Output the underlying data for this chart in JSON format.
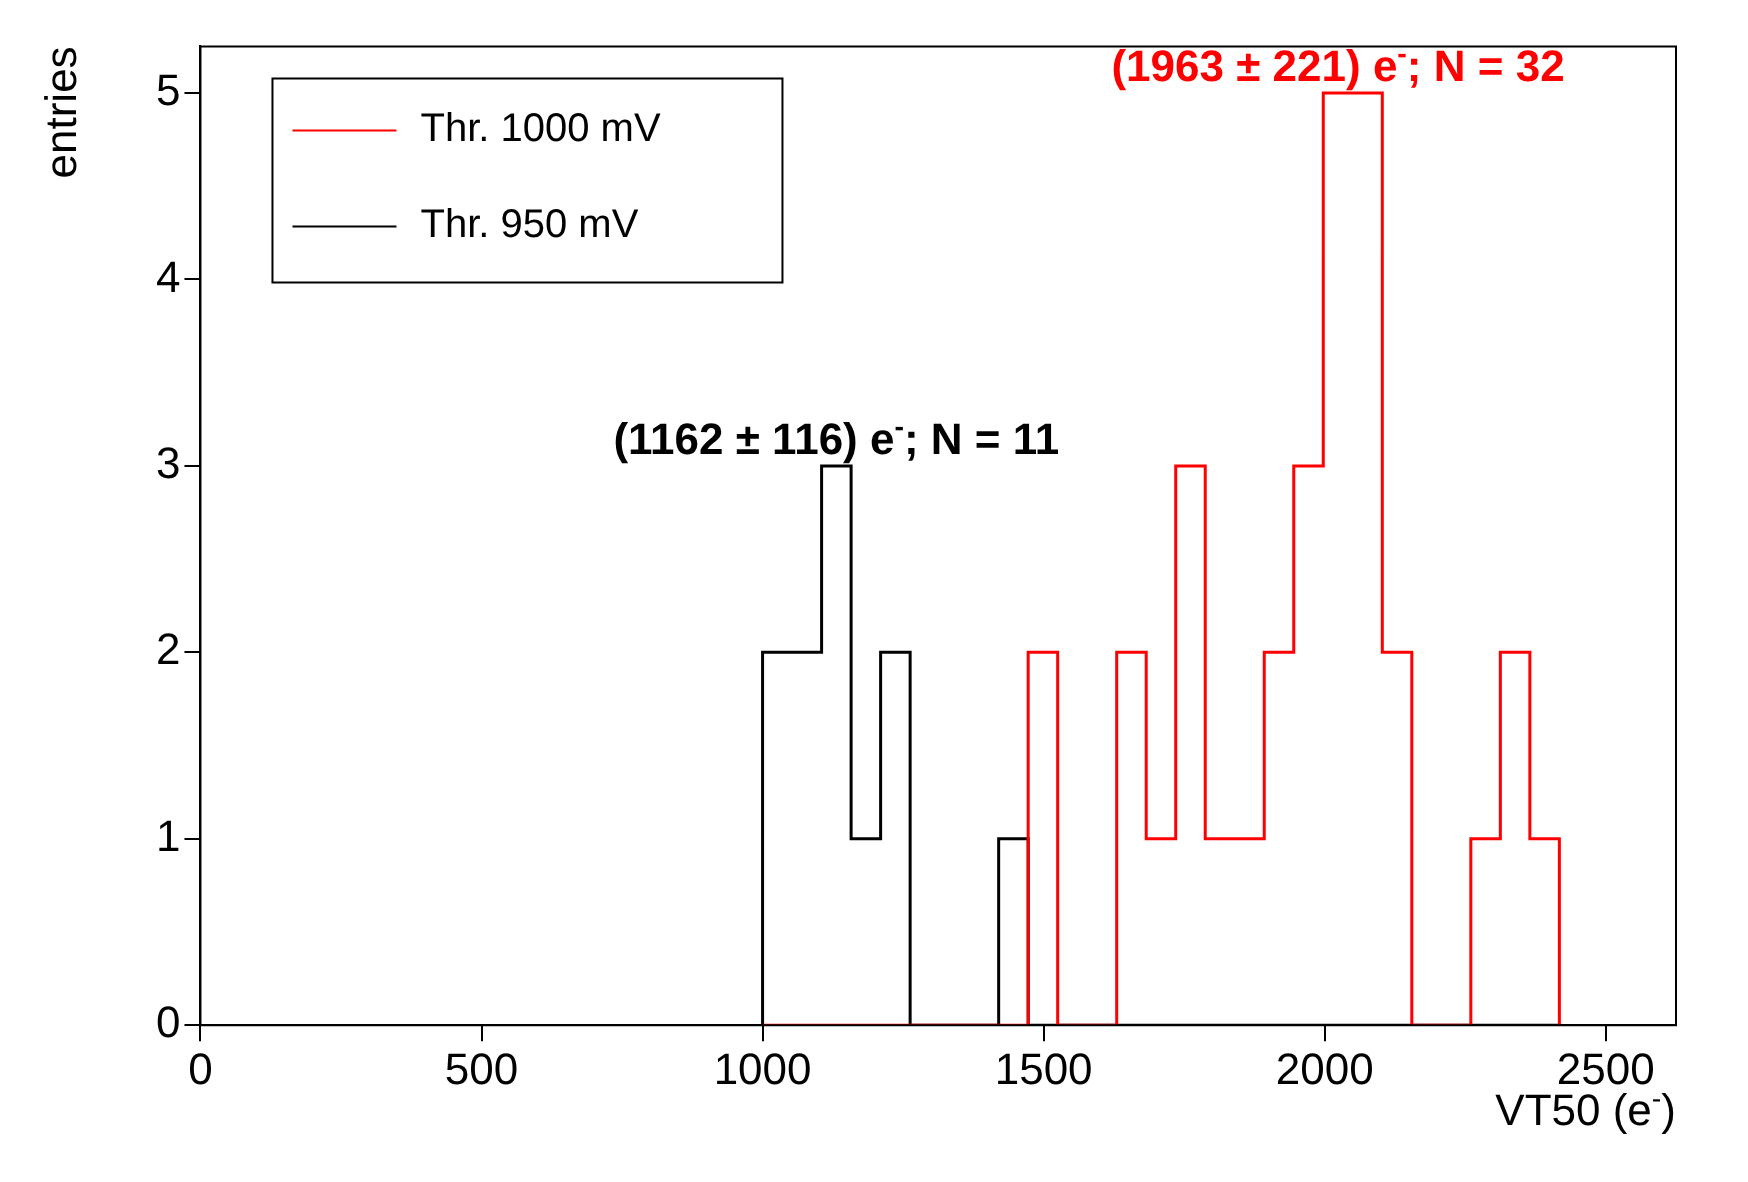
{
  "chart_data": {
    "type": "histogram",
    "xlabel": "VT50 (e$^{-}$)",
    "ylabel": "entries",
    "bins": [
      1000,
      1052.5,
      1105,
      1157.5,
      1210,
      1262.5,
      1315,
      1367.5,
      1420,
      1472.5,
      1525,
      1577.5,
      1630,
      1682.5,
      1735,
      1787.5,
      1840,
      1892.5,
      1945,
      1997.5,
      2050,
      2102.5,
      2155,
      2207.5,
      2260,
      2312.5,
      2365,
      2417.5
    ],
    "series": [
      {
        "name": "Thr. 1000 mV",
        "color": "#ff0000",
        "values": [
          0,
          0,
          0,
          0,
          0,
          0,
          0,
          0,
          0,
          2,
          0,
          0,
          2,
          1,
          3,
          1,
          1,
          2,
          3,
          5,
          5,
          2,
          0,
          0,
          1,
          2,
          1
        ]
      },
      {
        "name": "Thr. 950 mV",
        "color": "#000000",
        "values": [
          2,
          2,
          3,
          1,
          2,
          0,
          0,
          0,
          1,
          0,
          0,
          0,
          0,
          0,
          0,
          0,
          0,
          0,
          0,
          0,
          0,
          0,
          0,
          0,
          0,
          0,
          0
        ]
      }
    ],
    "annotations": [
      "(1963 ± 221) e$^{-}$; N = 32",
      "(1162 ± 116) e$^{-}$; N = 11"
    ],
    "xlim": [
      0,
      2625
    ],
    "ylim": [
      0,
      5.25
    ],
    "xticks": [
      0,
      500,
      1000,
      1500,
      2000,
      2500
    ],
    "yticks": [
      0,
      1,
      2,
      3,
      4,
      5
    ],
    "legend": "top left",
    "grid": false
  }
}
